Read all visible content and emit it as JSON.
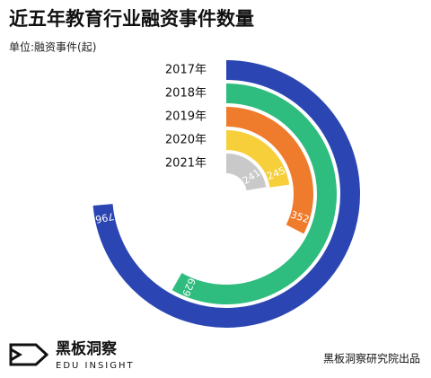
{
  "chart_data": {
    "type": "radial-bar",
    "title": "近五年教育行业融资事件数量",
    "subtitle": "单位:融资事件(起)",
    "categories": [
      "2017年",
      "2018年",
      "2019年",
      "2020年",
      "2021年"
    ],
    "values": [
      796,
      629,
      352,
      245,
      241
    ],
    "colors": [
      "#2b46b2",
      "#2fbd7f",
      "#ef7b2c",
      "#f6cf3b",
      "#c9c9c9"
    ]
  },
  "footer": {
    "logo_text": "黑板洞察",
    "logo_subtext": "EDU INSIGHT",
    "source": "黑板洞察研究院出品"
  }
}
